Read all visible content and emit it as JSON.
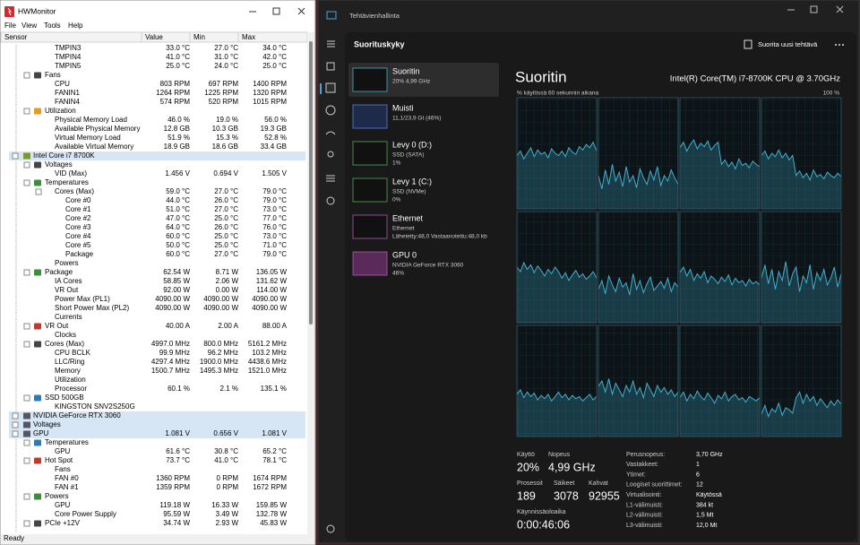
{
  "hwmonitor": {
    "title": "HWMonitor",
    "menu": [
      "File",
      "View",
      "Tools",
      "Help"
    ],
    "columns": [
      "Sensor",
      "Value",
      "Min",
      "Max"
    ],
    "rows": [
      [
        "TMPIN3",
        "33.0 °C",
        "27.0 °C",
        "34.0 °C"
      ],
      [
        "TMPIN4",
        "41.0 °C",
        "31.0 °C",
        "42.0 °C"
      ],
      [
        "TMPIN5",
        "25.0 °C",
        "24.0 °C",
        "25.0 °C"
      ],
      [
        "Fans"
      ],
      [
        "CPU",
        "803 RPM",
        "697 RPM",
        "1400 RPM"
      ],
      [
        "FANIN1",
        "1264 RPM",
        "1225 RPM",
        "1320 RPM"
      ],
      [
        "FANIN4",
        "574 RPM",
        "520 RPM",
        "1015 RPM"
      ],
      [
        "Utilization"
      ],
      [
        "Physical Memory Load",
        "46.0 %",
        "19.0 %",
        "56.0 %"
      ],
      [
        "Available Physical Memory",
        "12.8 GB",
        "10.3 GB",
        "19.3 GB"
      ],
      [
        "Virtual Memory Load",
        "51.9 %",
        "15.3 %",
        "52.8 %"
      ],
      [
        "Available Virtual Memory",
        "18.9 GB",
        "18.6 GB",
        "33.4 GB"
      ],
      [
        "Intel Core i7 8700K"
      ],
      [
        "Voltages"
      ],
      [
        "VID (Max)",
        "1.456 V",
        "0.694 V",
        "1.505 V"
      ],
      [
        "Temperatures"
      ],
      [
        "Cores (Max)",
        "59.0 °C",
        "27.0 °C",
        "79.0 °C"
      ],
      [
        "Core #0",
        "44.0 °C",
        "26.0 °C",
        "79.0 °C"
      ],
      [
        "Core #1",
        "51.0 °C",
        "27.0 °C",
        "73.0 °C"
      ],
      [
        "Core #2",
        "47.0 °C",
        "25.0 °C",
        "77.0 °C"
      ],
      [
        "Core #3",
        "64.0 °C",
        "26.0 °C",
        "76.0 °C"
      ],
      [
        "Core #4",
        "60.0 °C",
        "25.0 °C",
        "73.0 °C"
      ],
      [
        "Core #5",
        "50.0 °C",
        "25.0 °C",
        "71.0 °C"
      ],
      [
        "Package",
        "60.0 °C",
        "27.0 °C",
        "79.0 °C"
      ],
      [
        "Powers"
      ],
      [
        "Package",
        "62.54 W",
        "8.71 W",
        "136.05 W"
      ],
      [
        "IA Cores",
        "58.85 W",
        "2.06 W",
        "131.62 W"
      ],
      [
        "VR Out",
        "92.00 W",
        "0.00 W",
        "114.00 W"
      ],
      [
        "Power Max (PL1)",
        "4090.00 W",
        "4090.00 W",
        "4090.00 W"
      ],
      [
        "Short Power Max (PL2)",
        "4090.00 W",
        "4090.00 W",
        "4090.00 W"
      ],
      [
        "Currents"
      ],
      [
        "VR Out",
        "40.00 A",
        "2.00 A",
        "88.00 A"
      ],
      [
        "Clocks"
      ],
      [
        "Cores (Max)",
        "4997.0 MHz",
        "800.0 MHz",
        "5161.2 MHz"
      ],
      [
        "CPU BCLK",
        "99.9 MHz",
        "96.2 MHz",
        "103.2 MHz"
      ],
      [
        "LLC/Ring",
        "4297.4 MHz",
        "1900.0 MHz",
        "4438.6 MHz"
      ],
      [
        "Memory",
        "1500.7 MHz",
        "1495.3 MHz",
        "1521.0 MHz"
      ],
      [
        "Utilization"
      ],
      [
        "Processor",
        "60.1 %",
        "2.1 %",
        "135.1 %"
      ],
      [
        "SSD 500GB"
      ],
      [
        "KINGSTON SNV2S250G"
      ],
      [
        "NVIDIA GeForce RTX 3060"
      ],
      [
        "Voltages"
      ],
      [
        "GPU",
        "1.081 V",
        "0.656 V",
        "1.081 V"
      ],
      [
        "Temperatures"
      ],
      [
        "GPU",
        "61.6 °C",
        "30.8 °C",
        "65.2 °C"
      ],
      [
        "Hot Spot",
        "73.7 °C",
        "41.0 °C",
        "78.1 °C"
      ],
      [
        "Fans"
      ],
      [
        "FAN #0",
        "1360 RPM",
        "0 RPM",
        "1674 RPM"
      ],
      [
        "FAN #1",
        "1359 RPM",
        "0 RPM",
        "1672 RPM"
      ],
      [
        "Powers"
      ],
      [
        "GPU",
        "119.18 W",
        "16.33 W",
        "159.85 W"
      ],
      [
        "Core Power Supply",
        "95.59 W",
        "3.49 W",
        "132.78 W"
      ],
      [
        "PCIe +12V",
        "34.74 W",
        "2.93 W",
        "45.83 W"
      ]
    ],
    "status": "Ready"
  },
  "taskmanager": {
    "title": "Tehtävienhallinta",
    "section": "Suorituskyky",
    "run_task": "Suorita uusi tehtävä",
    "devices": [
      {
        "name": "Suoritin",
        "lines": [
          "20% 4,99 GHz"
        ]
      },
      {
        "name": "Muisti",
        "lines": [
          "11,1/23,9 Gt (46%)"
        ]
      },
      {
        "name": "Levy 0 (D:)",
        "lines": [
          "SSD (SATA)",
          "1%"
        ]
      },
      {
        "name": "Levy 1 (C:)",
        "lines": [
          "SSD (NVMe)",
          "0%"
        ]
      },
      {
        "name": "Ethernet",
        "lines": [
          "Ethernet",
          "Lähetetty:48,0 Vastaanotettu:48,0 kb"
        ]
      },
      {
        "name": "GPU 0",
        "lines": [
          "NVIDIA GeForce RTX 3060",
          "46%"
        ]
      }
    ],
    "heading": "Suoritin",
    "cpu_model": "Intel(R) Core(TM) i7-8700K CPU @ 3.70GHz",
    "graph_caption": "% käytössä 60 sekunnin aikana",
    "graph_max": "100 %",
    "graphs": {
      "type": "line",
      "ylim": [
        0,
        100
      ],
      "color": "#41b1cf",
      "series": [
        {
          "values": [
            48,
            52,
            45,
            50,
            55,
            47,
            53,
            49,
            51,
            46,
            54,
            50,
            48,
            52,
            47,
            55,
            51,
            49,
            56,
            53,
            58,
            55,
            60,
            52
          ]
        },
        {
          "values": [
            30,
            18,
            35,
            22,
            40,
            25,
            33,
            20,
            38,
            24,
            30,
            19,
            36,
            28,
            22,
            34,
            26,
            38,
            21,
            30,
            25,
            35,
            28,
            22
          ]
        },
        {
          "values": [
            55,
            60,
            52,
            58,
            62,
            54,
            59,
            56,
            61,
            53,
            57,
            60,
            40,
            44,
            38,
            42,
            36,
            45,
            39,
            41,
            37,
            43,
            40,
            38
          ]
        },
        {
          "values": [
            48,
            52,
            45,
            50,
            47,
            53,
            46,
            50,
            44,
            48,
            30,
            34,
            28,
            32,
            26,
            35,
            29,
            31,
            27,
            33,
            30,
            28,
            32,
            29
          ]
        },
        {
          "values": [
            50,
            46,
            54,
            48,
            52,
            45,
            51,
            47,
            42,
            48,
            44,
            50,
            46,
            40,
            45,
            38,
            43,
            47,
            41,
            44,
            39,
            42,
            46,
            40
          ]
        },
        {
          "values": [
            30,
            38,
            26,
            42,
            34,
            28,
            40,
            32,
            36,
            25,
            44,
            30,
            38,
            27,
            35,
            41,
            29,
            33,
            37,
            31,
            40,
            28,
            36,
            32
          ]
        },
        {
          "values": [
            45,
            50,
            42,
            48,
            38,
            44,
            40,
            46,
            36,
            42,
            39,
            35,
            41,
            37,
            43,
            34,
            40,
            36,
            38,
            33,
            39,
            35,
            37,
            34
          ]
        },
        {
          "values": [
            40,
            52,
            35,
            48,
            30,
            46,
            38,
            55,
            33,
            44,
            50,
            28,
            42,
            36,
            52,
            30,
            45,
            38,
            48,
            34,
            40,
            50,
            32,
            44
          ]
        },
        {
          "values": [
            38,
            42,
            35,
            40,
            36,
            39,
            33,
            37,
            34,
            38,
            32,
            36,
            40,
            35,
            38,
            33,
            37,
            34,
            36,
            32,
            35,
            38,
            33,
            36
          ]
        },
        {
          "values": [
            45,
            50,
            40,
            52,
            38,
            48,
            42,
            36,
            46,
            40,
            50,
            38,
            44,
            35,
            48,
            42,
            36,
            46,
            40,
            44,
            38,
            42,
            36,
            40
          ]
        },
        {
          "values": [
            35,
            40,
            32,
            38,
            34,
            41,
            36,
            33,
            39,
            35,
            30,
            37,
            34,
            40,
            32,
            36,
            38,
            33,
            35,
            31,
            36,
            34,
            32,
            35
          ]
        },
        {
          "values": [
            20,
            28,
            18,
            25,
            22,
            30,
            19,
            26,
            24,
            21,
            35,
            40,
            30,
            38,
            32,
            36,
            28,
            34,
            30,
            26,
            32,
            28,
            33,
            29
          ]
        }
      ]
    },
    "stats": [
      {
        "label": "Käyttö",
        "value": "20%"
      },
      {
        "label": "Nopeus",
        "value": "4,99 GHz"
      },
      {
        "label": "Prosessit",
        "value": "189"
      },
      {
        "label": "Säikeet",
        "value": "3078"
      },
      {
        "label": "Kahvat",
        "value": "92955"
      },
      {
        "label": "Käynnissäoloaika",
        "value": "0:00:46:06"
      }
    ],
    "specs": [
      {
        "label": "Perusnopeus:",
        "value": "3,70 GHz"
      },
      {
        "label": "Vastakkeet:",
        "value": "1"
      },
      {
        "label": "Ytimet:",
        "value": "6"
      },
      {
        "label": "Loogiset suorittimet:",
        "value": "12"
      },
      {
        "label": "Virtualisointi:",
        "value": "Käytössä"
      },
      {
        "label": "L1-välimuisti:",
        "value": "384 kt"
      },
      {
        "label": "L2-välimuisti:",
        "value": "1,5 Mt"
      },
      {
        "label": "L3-välimuisti:",
        "value": "12,0 Mt"
      }
    ]
  }
}
